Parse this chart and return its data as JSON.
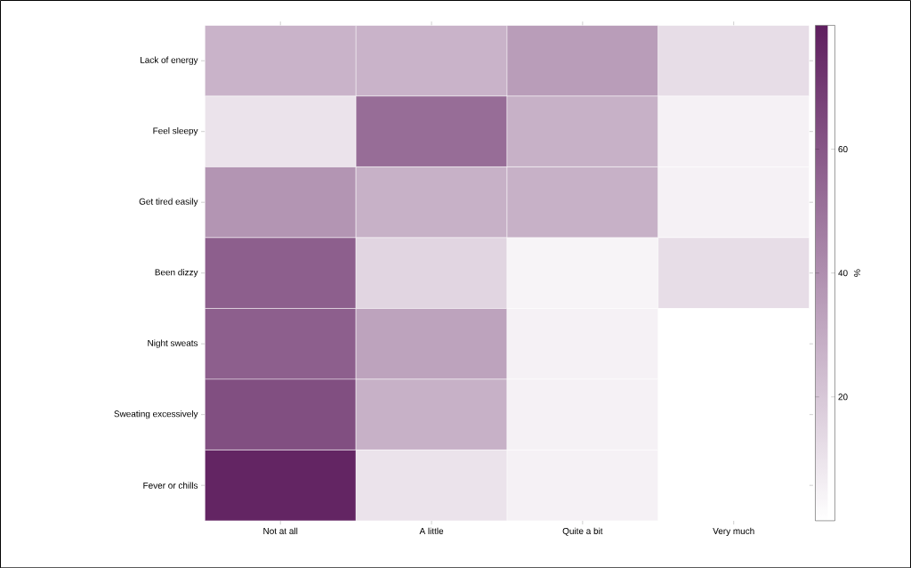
{
  "chart_data": {
    "type": "heatmap",
    "clabel": "%",
    "categories": [
      "Not at all",
      "A little",
      "Quite a bit",
      "Very much"
    ],
    "y_categories": [
      "Lack of energy",
      "Feel sleepy",
      "Get tired easily",
      "Been dizzy",
      "Night sweats",
      "Sweating excessively",
      "Fever or chills"
    ],
    "cells": [
      [
        27,
        27,
        35,
        12
      ],
      [
        10,
        52,
        28,
        5
      ],
      [
        38,
        28,
        28,
        5
      ],
      [
        57,
        15,
        4,
        12
      ],
      [
        57,
        33,
        5,
        0
      ],
      [
        63,
        28,
        5,
        0
      ],
      [
        78,
        10,
        5,
        0
      ]
    ],
    "clim": [
      0,
      80
    ],
    "cticks": [
      20,
      40,
      60
    ]
  }
}
